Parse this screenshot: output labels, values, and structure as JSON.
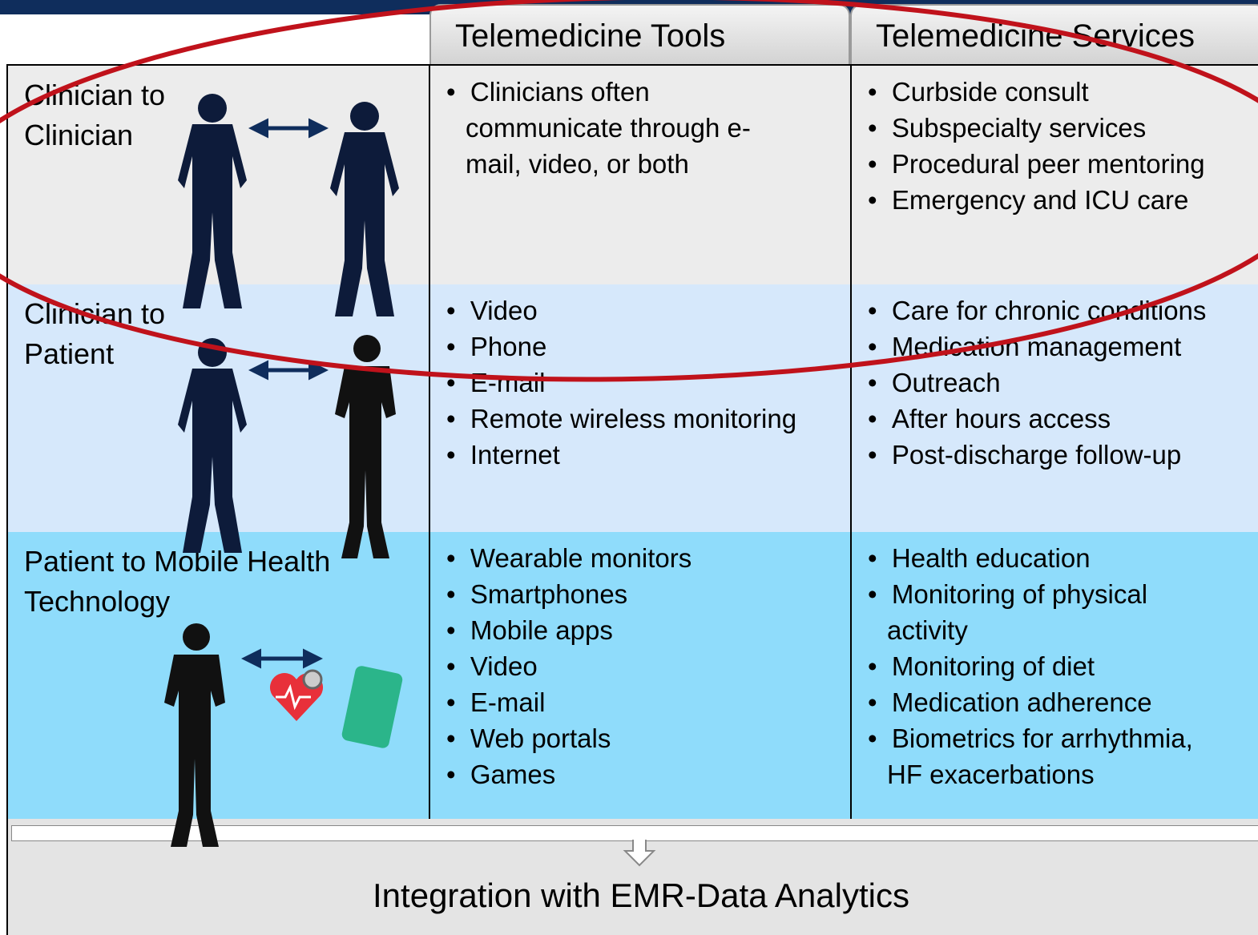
{
  "header": {
    "columns": [
      "Telemedicine Tools",
      "Telemedicine Services"
    ]
  },
  "rows": [
    {
      "label": "Clinician to Clinician",
      "tools": [
        "Clinicians often communicate through e-mail, video, or both"
      ],
      "services": [
        "Curbside consult",
        "Subspecialty services",
        "Procedural peer mentoring",
        "Emergency  and ICU care"
      ]
    },
    {
      "label": "Clinician to Patient",
      "tools": [
        "Video",
        "Phone",
        "E-mail",
        "Remote wireless monitoring",
        "Internet"
      ],
      "services": [
        "Care for chronic conditions",
        "Medication management",
        "Outreach",
        "After hours access",
        "Post-discharge follow-up"
      ]
    },
    {
      "label": "Patient to Mobile Health Technology",
      "tools": [
        "Wearable monitors",
        "Smartphones",
        "Mobile apps",
        "Video",
        "E-mail",
        "Web portals",
        "Games"
      ],
      "services": [
        "Health education",
        "Monitoring of physical activity",
        "Monitoring of diet",
        "Medication adherence",
        "Biometrics for arrhythmia, HF exacerbations"
      ]
    }
  ],
  "footer": {
    "text": "Integration with EMR-Data Analytics"
  }
}
